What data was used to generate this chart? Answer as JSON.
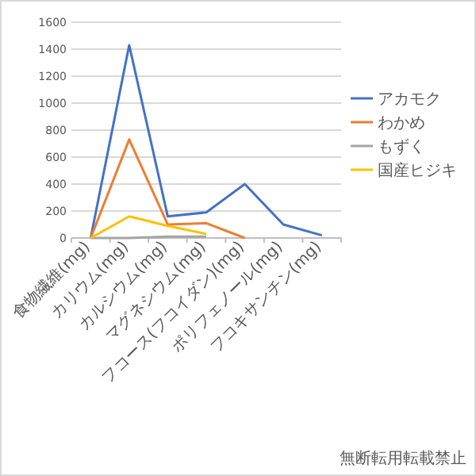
{
  "chart_data": {
    "type": "line",
    "categories": [
      "食物繊維(mg)",
      "カリウム(mg)",
      "カルシウム(mg)",
      "マグネシウム(mg)",
      "フコース(フコイダン)(mg)",
      "ポリフェノール(mg)",
      "フコキサンチン(mg)"
    ],
    "series": [
      {
        "name": "アカモク",
        "color": "#4472c4",
        "values": [
          0,
          1430,
          160,
          190,
          400,
          100,
          20
        ]
      },
      {
        "name": "わかめ",
        "color": "#ed7d31",
        "values": [
          0,
          730,
          100,
          110,
          0,
          null,
          null
        ]
      },
      {
        "name": "もずく",
        "color": "#a5a5a5",
        "values": [
          0,
          0,
          10,
          10,
          null,
          null,
          null
        ]
      },
      {
        "name": "国産ヒジキ",
        "color": "#ffc000",
        "values": [
          0,
          160,
          90,
          30,
          null,
          null,
          null
        ]
      }
    ],
    "ylim": [
      0,
      1600
    ],
    "yticks": [
      0,
      200,
      400,
      600,
      800,
      1000,
      1200,
      1400,
      1600
    ],
    "grid": "y",
    "legend": "right",
    "annotations": [
      "無断転用転載禁止"
    ]
  }
}
